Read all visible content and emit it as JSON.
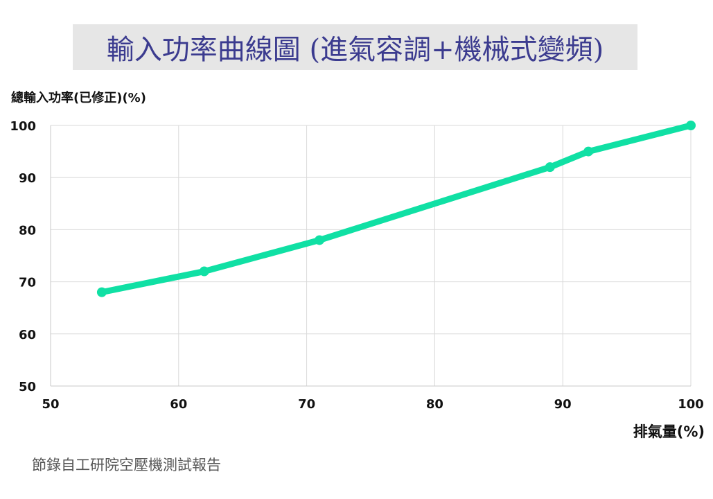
{
  "chart_data": {
    "type": "line",
    "title": "輸入功率曲線圖 (進氣容調+機械式變頻)",
    "ylabel": "總輸入功率(已修正)(%)",
    "xlabel": "排氣量(%)",
    "xlim": [
      50,
      100
    ],
    "ylim": [
      50,
      100
    ],
    "x_ticks": [
      "50",
      "60",
      "70",
      "80",
      "90",
      "100"
    ],
    "y_ticks": [
      "50",
      "60",
      "70",
      "80",
      "90",
      "100"
    ],
    "grid": true,
    "series": [
      {
        "color": "#10e0a4",
        "x": [
          54,
          62,
          71,
          89,
          92,
          100
        ],
        "y": [
          68,
          72,
          78,
          92,
          95,
          100
        ]
      }
    ]
  },
  "footnote": "節錄自工研院空壓機測試報告"
}
